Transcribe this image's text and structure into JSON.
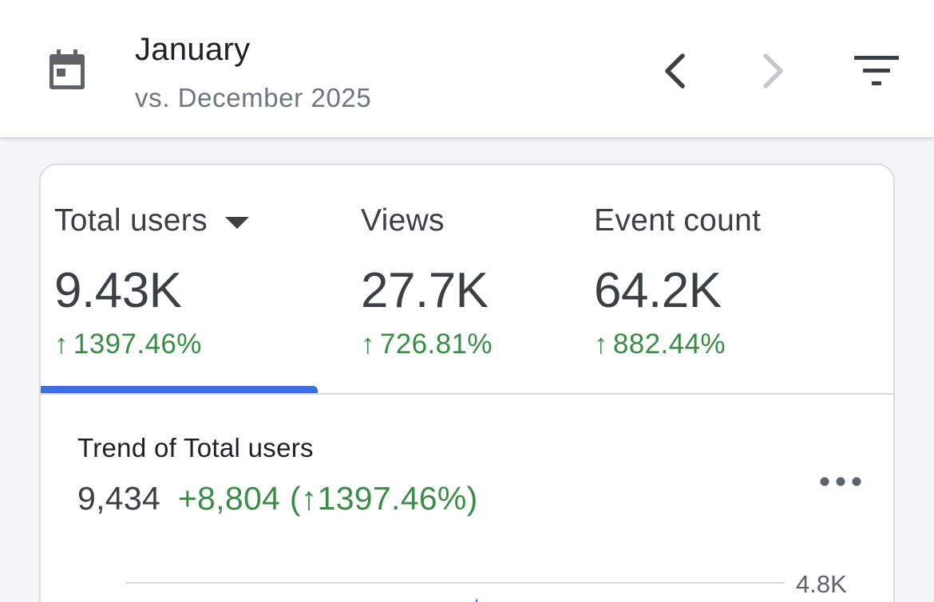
{
  "header": {
    "calendar_icon": "calendar-icon",
    "month": "January",
    "compare": "vs. December 2025",
    "prev_icon": "chevron-left-icon",
    "next_icon": "chevron-right-icon",
    "filter_icon": "filter-icon"
  },
  "metrics": [
    {
      "label": "Total users",
      "value": "9.43K",
      "arrow": "↑",
      "change": "1397.46%"
    },
    {
      "label": "Views",
      "value": "27.7K",
      "arrow": "↑",
      "change": "726.81%"
    },
    {
      "label": "Event count",
      "value": "64.2K",
      "arrow": "↑",
      "change": "882.44%"
    }
  ],
  "trend": {
    "title": "Trend of Total users",
    "total": "9,434",
    "delta": "+8,804 (↑1397.46%)",
    "more_icon": "more-horizontal-icon"
  },
  "chart_data": {
    "type": "line",
    "yticks": [
      "4.8K"
    ]
  },
  "colors": {
    "accent_blue": "#3b6fdc",
    "positive_green": "#3a8c46",
    "icon_gray": "#5f6368"
  }
}
